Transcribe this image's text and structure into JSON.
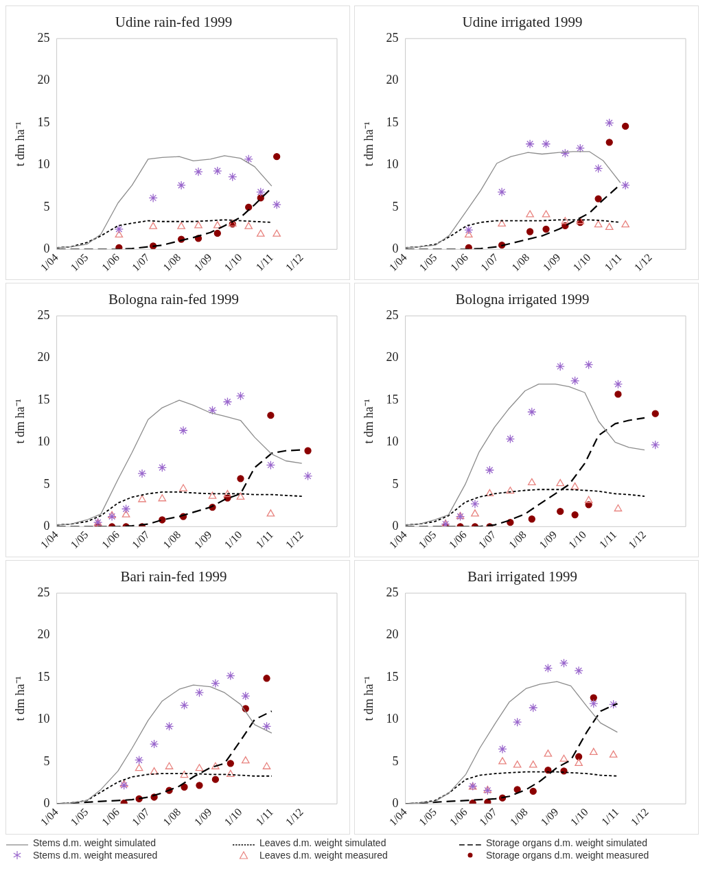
{
  "chart_data": [
    {
      "type": "line",
      "title": "Udine rain-fed 1999",
      "ylabel": "t dm ha⁻¹",
      "legend": "bottom",
      "x": [
        "1999-04-01",
        "1999-04-15",
        "1999-05-01",
        "1999-05-15",
        "1999-06-01",
        "1999-06-15",
        "1999-07-01",
        "1999-07-15",
        "1999-08-01",
        "1999-08-15",
        "1999-09-01",
        "1999-09-15",
        "1999-10-01",
        "1999-10-15",
        "1999-11-01"
      ],
      "xlim": [
        "1999-04-01",
        "2000-01-05"
      ],
      "xticks": [
        {
          "value": "1999-04-01",
          "label": "1/04"
        },
        {
          "value": "1999-05-01",
          "label": "1/05"
        },
        {
          "value": "1999-06-01",
          "label": "1/06"
        },
        {
          "value": "1999-07-01",
          "label": "1/07"
        },
        {
          "value": "1999-08-01",
          "label": "1/08"
        },
        {
          "value": "1999-09-01",
          "label": "1/09"
        },
        {
          "value": "1999-10-01",
          "label": "1/10"
        },
        {
          "value": "1999-11-01",
          "label": "1/11"
        },
        {
          "value": "1999-12-01",
          "label": "1/12"
        }
      ],
      "ylim": [
        0,
        25
      ],
      "yticks": [
        0,
        5,
        10,
        15,
        20,
        25
      ],
      "series": [
        {
          "name": "Stems d.m. weight simulated",
          "color": "#8c8c8c",
          "line_style": "solid",
          "marker": "none",
          "values": [
            0.2,
            0.3,
            0.6,
            1.8,
            5.5,
            7.6,
            10.7,
            10.9,
            11.0,
            10.5,
            10.7,
            11.1,
            10.8,
            9.8,
            7.5
          ]
        },
        {
          "name": "Leaves d.m. weight simulated",
          "color": "#000000",
          "line_style": "dotted",
          "marker": "none",
          "values": [
            0.2,
            0.3,
            0.8,
            1.6,
            2.8,
            3.1,
            3.4,
            3.3,
            3.3,
            3.3,
            3.4,
            3.5,
            3.4,
            3.3,
            3.2
          ]
        },
        {
          "name": "Storage organs d.m. weight simulated",
          "color": "#000000",
          "line_style": "dashed",
          "marker": "none",
          "values": [
            0,
            0,
            0,
            0,
            0,
            0.1,
            0.3,
            0.5,
            1.0,
            1.4,
            2.0,
            2.8,
            3.8,
            5.3,
            7.3
          ]
        },
        {
          "name": "Stems d.m. weight measured",
          "type": "scatter",
          "color": "#9966cc",
          "marker": "cross",
          "x": [
            "1999-06-02",
            "1999-07-06",
            "1999-08-03",
            "1999-08-20",
            "1999-09-08",
            "1999-09-23",
            "1999-10-09",
            "1999-10-21",
            "1999-11-06"
          ],
          "values": [
            2.4,
            6.1,
            7.6,
            9.2,
            9.3,
            8.6,
            10.7,
            6.8,
            5.3
          ]
        },
        {
          "name": "Leaves d.m. weight measured",
          "type": "scatter",
          "color": "#e8837f",
          "marker": "triangle",
          "x": [
            "1999-06-02",
            "1999-07-06",
            "1999-08-03",
            "1999-08-20",
            "1999-09-08",
            "1999-09-23",
            "1999-10-09",
            "1999-10-21",
            "1999-11-06"
          ],
          "values": [
            1.7,
            2.7,
            2.7,
            2.8,
            2.8,
            3.0,
            2.7,
            1.8,
            1.8
          ]
        },
        {
          "name": "Storage organs d.m. weight measured",
          "type": "scatter",
          "color": "#8b0000",
          "marker": "circle",
          "x": [
            "1999-06-02",
            "1999-07-06",
            "1999-08-03",
            "1999-08-20",
            "1999-09-08",
            "1999-09-23",
            "1999-10-09",
            "1999-10-21",
            "1999-11-06"
          ],
          "values": [
            0.2,
            0.4,
            1.2,
            1.3,
            1.9,
            3.0,
            5.0,
            6.1,
            11.0
          ]
        }
      ]
    },
    {
      "type": "line",
      "title": "Udine irrigated 1999",
      "ylabel": "t dm ha⁻¹",
      "x": [
        "1999-04-01",
        "1999-04-15",
        "1999-05-01",
        "1999-05-15",
        "1999-06-01",
        "1999-06-15",
        "1999-07-01",
        "1999-07-15",
        "1999-08-01",
        "1999-08-15",
        "1999-09-01",
        "1999-09-15",
        "1999-10-01",
        "1999-10-15",
        "1999-11-01"
      ],
      "xlim": [
        "1999-04-01",
        "2000-01-05"
      ],
      "xticks": [
        {
          "value": "1999-04-01",
          "label": "1/04"
        },
        {
          "value": "1999-05-01",
          "label": "1/05"
        },
        {
          "value": "1999-06-01",
          "label": "1/06"
        },
        {
          "value": "1999-07-01",
          "label": "1/07"
        },
        {
          "value": "1999-08-01",
          "label": "1/08"
        },
        {
          "value": "1999-09-01",
          "label": "1/09"
        },
        {
          "value": "1999-10-01",
          "label": "1/10"
        },
        {
          "value": "1999-11-01",
          "label": "1/11"
        },
        {
          "value": "1999-12-01",
          "label": "1/12"
        }
      ],
      "ylim": [
        0,
        25
      ],
      "yticks": [
        0,
        5,
        10,
        15,
        20,
        25
      ],
      "series": [
        {
          "color": "#8c8c8c",
          "line_style": "solid",
          "marker": "none",
          "values": [
            0.2,
            0.3,
            0.5,
            1.7,
            4.6,
            7.0,
            10.2,
            11.0,
            11.5,
            11.3,
            11.5,
            11.6,
            11.6,
            10.5,
            7.9
          ]
        },
        {
          "color": "#000000",
          "line_style": "dotted",
          "marker": "none",
          "values": [
            0.2,
            0.3,
            0.6,
            1.5,
            2.8,
            3.2,
            3.4,
            3.4,
            3.4,
            3.4,
            3.5,
            3.5,
            3.5,
            3.4,
            3.2
          ]
        },
        {
          "color": "#000000",
          "line_style": "dashed",
          "marker": "none",
          "values": [
            0,
            0,
            0,
            0,
            0,
            0.1,
            0.3,
            0.7,
            1.2,
            1.6,
            2.4,
            3.3,
            4.3,
            5.9,
            7.7
          ]
        },
        {
          "type": "scatter",
          "color": "#9966cc",
          "marker": "cross",
          "x": [
            "1999-06-03",
            "1999-07-06",
            "1999-08-03",
            "1999-08-19",
            "1999-09-07",
            "1999-09-22",
            "1999-10-10",
            "1999-10-21",
            "1999-11-06"
          ],
          "values": [
            2.3,
            6.8,
            12.5,
            12.5,
            11.4,
            12.0,
            9.6,
            15.0,
            7.6
          ]
        },
        {
          "type": "scatter",
          "color": "#e8837f",
          "marker": "triangle",
          "x": [
            "1999-06-03",
            "1999-07-06",
            "1999-08-03",
            "1999-08-19",
            "1999-09-07",
            "1999-09-22",
            "1999-10-10",
            "1999-10-21",
            "1999-11-06"
          ],
          "values": [
            1.7,
            3.0,
            4.1,
            4.1,
            3.3,
            3.3,
            2.9,
            2.6,
            2.9
          ]
        },
        {
          "type": "scatter",
          "color": "#8b0000",
          "marker": "circle",
          "x": [
            "1999-06-03",
            "1999-07-06",
            "1999-08-03",
            "1999-08-19",
            "1999-09-07",
            "1999-09-22",
            "1999-10-10",
            "1999-10-21",
            "1999-11-06"
          ],
          "values": [
            0.2,
            0.5,
            2.1,
            2.4,
            2.8,
            3.2,
            6.0,
            12.7,
            14.6
          ]
        }
      ]
    },
    {
      "type": "line",
      "title": "Bologna rain-fed 1999",
      "ylabel": "t dm ha⁻¹",
      "x": [
        "1999-04-01",
        "1999-04-15",
        "1999-05-01",
        "1999-05-15",
        "1999-06-01",
        "1999-06-15",
        "1999-07-01",
        "1999-07-15",
        "1999-08-01",
        "1999-08-15",
        "1999-09-01",
        "1999-09-15",
        "1999-10-01",
        "1999-10-15",
        "1999-11-01",
        "1999-11-15",
        "1999-12-01"
      ],
      "xlim": [
        "1999-04-01",
        "2000-01-05"
      ],
      "xticks": [
        {
          "value": "1999-04-01",
          "label": "1/04"
        },
        {
          "value": "1999-05-01",
          "label": "1/05"
        },
        {
          "value": "1999-06-01",
          "label": "1/06"
        },
        {
          "value": "1999-07-01",
          "label": "1/07"
        },
        {
          "value": "1999-08-01",
          "label": "1/08"
        },
        {
          "value": "1999-09-01",
          "label": "1/09"
        },
        {
          "value": "1999-10-01",
          "label": "1/10"
        },
        {
          "value": "1999-11-01",
          "label": "1/11"
        },
        {
          "value": "1999-12-01",
          "label": "1/12"
        }
      ],
      "ylim": [
        0,
        25
      ],
      "yticks": [
        0,
        5,
        10,
        15,
        20,
        25
      ],
      "series": [
        {
          "color": "#8c8c8c",
          "line_style": "solid",
          "marker": "none",
          "values": [
            0.2,
            0.3,
            0.8,
            1.5,
            5.6,
            8.8,
            12.7,
            14.1,
            15.0,
            14.4,
            13.5,
            13.1,
            12.6,
            10.6,
            8.6,
            7.8,
            7.5
          ]
        },
        {
          "color": "#000000",
          "line_style": "dotted",
          "marker": "none",
          "values": [
            0.2,
            0.3,
            0.6,
            1.3,
            2.8,
            3.5,
            3.9,
            4.1,
            4.1,
            4.0,
            3.9,
            3.9,
            3.9,
            3.8,
            3.8,
            3.7,
            3.6
          ]
        },
        {
          "color": "#000000",
          "line_style": "dashed",
          "marker": "none",
          "values": [
            0,
            0,
            0,
            0,
            0,
            0.1,
            0.3,
            0.8,
            1.2,
            1.7,
            2.3,
            3.2,
            3.9,
            7.0,
            8.7,
            9.0,
            9.1
          ]
        },
        {
          "type": "scatter",
          "color": "#9966cc",
          "marker": "cross",
          "x": [
            "1999-05-12",
            "1999-05-26",
            "1999-06-09",
            "1999-06-25",
            "1999-07-15",
            "1999-08-05",
            "1999-09-03",
            "1999-09-18",
            "1999-10-01",
            "1999-10-31",
            "1999-12-07"
          ],
          "values": [
            0.5,
            1.2,
            2.1,
            6.3,
            7.0,
            11.4,
            13.8,
            14.8,
            15.5,
            7.3,
            6.0
          ]
        },
        {
          "type": "scatter",
          "color": "#e8837f",
          "marker": "triangle",
          "x": [
            "1999-05-12",
            "1999-05-26",
            "1999-06-09",
            "1999-06-25",
            "1999-07-15",
            "1999-08-05",
            "1999-09-03",
            "1999-09-18",
            "1999-10-01",
            "1999-10-31"
          ],
          "values": [
            0.4,
            1.3,
            1.4,
            3.2,
            3.3,
            4.5,
            3.6,
            3.8,
            3.5,
            1.5
          ]
        },
        {
          "type": "scatter",
          "color": "#8b0000",
          "marker": "circle",
          "x": [
            "1999-05-12",
            "1999-05-26",
            "1999-06-09",
            "1999-06-25",
            "1999-07-15",
            "1999-08-05",
            "1999-09-03",
            "1999-09-18",
            "1999-10-01",
            "1999-10-31",
            "1999-12-07"
          ],
          "values": [
            0,
            0,
            0,
            0,
            0.8,
            1.2,
            2.3,
            3.4,
            5.7,
            13.2,
            9.0
          ]
        }
      ]
    },
    {
      "type": "line",
      "title": "Bologna irrigated 1999",
      "ylabel": "t dm ha⁻¹",
      "x": [
        "1999-04-01",
        "1999-04-15",
        "1999-05-01",
        "1999-05-15",
        "1999-06-01",
        "1999-06-15",
        "1999-07-01",
        "1999-07-15",
        "1999-08-01",
        "1999-08-15",
        "1999-09-01",
        "1999-09-15",
        "1999-10-01",
        "1999-10-15",
        "1999-11-01",
        "1999-11-15",
        "1999-12-01"
      ],
      "xlim": [
        "1999-04-01",
        "2000-01-12"
      ],
      "xticks": [
        {
          "value": "1999-04-01",
          "label": "1/04"
        },
        {
          "value": "1999-05-01",
          "label": "1/05"
        },
        {
          "value": "1999-06-01",
          "label": "1/06"
        },
        {
          "value": "1999-07-01",
          "label": "1/07"
        },
        {
          "value": "1999-08-01",
          "label": "1/08"
        },
        {
          "value": "1999-09-01",
          "label": "1/09"
        },
        {
          "value": "1999-10-01",
          "label": "1/10"
        },
        {
          "value": "1999-11-01",
          "label": "1/11"
        },
        {
          "value": "1999-12-01",
          "label": "1/12"
        }
      ],
      "ylim": [
        0,
        25
      ],
      "yticks": [
        0,
        5,
        10,
        15,
        20,
        25
      ],
      "series": [
        {
          "color": "#8c8c8c",
          "line_style": "solid",
          "marker": "none",
          "values": [
            0.2,
            0.3,
            0.8,
            1.4,
            5.0,
            8.8,
            11.8,
            13.9,
            16.1,
            16.9,
            16.9,
            16.6,
            15.9,
            12.5,
            10.0,
            9.4,
            9.1
          ]
        },
        {
          "color": "#000000",
          "line_style": "dotted",
          "marker": "none",
          "values": [
            0.2,
            0.3,
            0.6,
            1.3,
            2.9,
            3.5,
            3.9,
            4.1,
            4.3,
            4.4,
            4.4,
            4.4,
            4.3,
            4.2,
            3.9,
            3.8,
            3.6
          ]
        },
        {
          "color": "#000000",
          "line_style": "dashed",
          "marker": "none",
          "values": [
            0,
            0,
            0,
            0,
            0,
            0,
            0.2,
            0.7,
            1.5,
            2.6,
            3.9,
            5.0,
            7.5,
            10.8,
            12.2,
            12.6,
            12.9
          ]
        },
        {
          "type": "scatter",
          "color": "#9966cc",
          "marker": "cross",
          "x": [
            "1999-05-12",
            "1999-05-27",
            "1999-06-11",
            "1999-06-26",
            "1999-07-17",
            "1999-08-08",
            "1999-09-06",
            "1999-09-21",
            "1999-10-05",
            "1999-11-04",
            "1999-12-12"
          ],
          "values": [
            0.3,
            1.2,
            2.7,
            6.7,
            10.4,
            13.6,
            19.0,
            17.3,
            19.2,
            16.9,
            9.7
          ]
        },
        {
          "type": "scatter",
          "color": "#e8837f",
          "marker": "triangle",
          "x": [
            "1999-05-12",
            "1999-05-27",
            "1999-06-11",
            "1999-06-26",
            "1999-07-17",
            "1999-08-08",
            "1999-09-06",
            "1999-09-21",
            "1999-10-05",
            "1999-11-04"
          ],
          "values": [
            0.3,
            1.2,
            1.5,
            3.9,
            4.2,
            5.2,
            5.1,
            4.7,
            3.1,
            2.1
          ]
        },
        {
          "type": "scatter",
          "color": "#8b0000",
          "marker": "circle",
          "x": [
            "1999-05-12",
            "1999-05-27",
            "1999-06-11",
            "1999-06-26",
            "1999-07-17",
            "1999-08-08",
            "1999-09-06",
            "1999-09-21",
            "1999-10-05",
            "1999-11-04",
            "1999-12-12"
          ],
          "values": [
            0,
            0,
            0,
            0,
            0.5,
            0.9,
            1.8,
            1.4,
            2.6,
            15.7,
            13.4
          ]
        }
      ]
    },
    {
      "type": "line",
      "title": "Bari rain-fed 1999",
      "ylabel": "t dm ha⁻¹",
      "x": [
        "1999-04-01",
        "1999-04-15",
        "1999-05-01",
        "1999-05-15",
        "1999-06-01",
        "1999-06-15",
        "1999-07-01",
        "1999-07-15",
        "1999-08-01",
        "1999-08-15",
        "1999-09-01",
        "1999-09-15",
        "1999-10-01",
        "1999-10-15",
        "1999-11-01"
      ],
      "xlim": [
        "1999-04-01",
        "2000-01-05"
      ],
      "xticks": [
        {
          "value": "1999-04-01",
          "label": "1/04"
        },
        {
          "value": "1999-05-01",
          "label": "1/05"
        },
        {
          "value": "1999-06-01",
          "label": "1/06"
        },
        {
          "value": "1999-07-01",
          "label": "1/07"
        },
        {
          "value": "1999-08-01",
          "label": "1/08"
        },
        {
          "value": "1999-09-01",
          "label": "1/09"
        },
        {
          "value": "1999-10-01",
          "label": "1/10"
        },
        {
          "value": "1999-11-01",
          "label": "1/11"
        },
        {
          "value": "1999-12-01",
          "label": "1/12"
        }
      ],
      "ylim": [
        0,
        25
      ],
      "yticks": [
        0,
        5,
        10,
        15,
        20,
        25
      ],
      "series": [
        {
          "color": "#8c8c8c",
          "line_style": "solid",
          "marker": "none",
          "values": [
            0,
            0.1,
            0.4,
            1.7,
            3.9,
            6.6,
            9.9,
            12.2,
            13.6,
            14.1,
            13.9,
            13.2,
            11.8,
            9.4,
            8.4
          ]
        },
        {
          "color": "#000000",
          "line_style": "dotted",
          "marker": "none",
          "values": [
            0,
            0.1,
            0.4,
            1.4,
            2.6,
            3.2,
            3.5,
            3.6,
            3.6,
            3.6,
            3.5,
            3.5,
            3.4,
            3.3,
            3.3
          ]
        },
        {
          "color": "#000000",
          "line_style": "dashed",
          "marker": "none",
          "values": [
            0,
            0.1,
            0.2,
            0.3,
            0.4,
            0.5,
            0.8,
            1.3,
            2.1,
            3.2,
            4.3,
            4.8,
            7.5,
            10.0,
            11.0
          ]
        },
        {
          "type": "scatter",
          "color": "#9966cc",
          "marker": "cross",
          "x": [
            "1999-06-07",
            "1999-06-22",
            "1999-07-07",
            "1999-07-22",
            "1999-08-06",
            "1999-08-21",
            "1999-09-06",
            "1999-09-21",
            "1999-10-06",
            "1999-10-27"
          ],
          "values": [
            2.2,
            5.2,
            7.1,
            9.2,
            11.7,
            13.2,
            14.3,
            15.2,
            12.8,
            9.2
          ]
        },
        {
          "type": "scatter",
          "color": "#e8837f",
          "marker": "triangle",
          "x": [
            "1999-06-07",
            "1999-06-22",
            "1999-07-07",
            "1999-07-22",
            "1999-08-06",
            "1999-08-21",
            "1999-09-06",
            "1999-09-21",
            "1999-10-06",
            "1999-10-27"
          ],
          "values": [
            2.3,
            4.2,
            3.8,
            4.4,
            3.4,
            4.2,
            4.4,
            3.5,
            5.1,
            4.4
          ]
        },
        {
          "type": "scatter",
          "color": "#8b0000",
          "marker": "circle",
          "x": [
            "1999-06-07",
            "1999-06-22",
            "1999-07-07",
            "1999-07-22",
            "1999-08-06",
            "1999-08-21",
            "1999-09-06",
            "1999-09-21",
            "1999-10-06",
            "1999-10-27"
          ],
          "values": [
            0.1,
            0.6,
            0.8,
            1.6,
            2.0,
            2.2,
            2.9,
            4.8,
            11.3,
            14.9
          ]
        }
      ]
    },
    {
      "type": "line",
      "title": "Bari irrigated 1999",
      "ylabel": "t dm ha⁻¹",
      "x": [
        "1999-04-01",
        "1999-04-15",
        "1999-05-01",
        "1999-05-15",
        "1999-06-01",
        "1999-06-15",
        "1999-07-01",
        "1999-07-15",
        "1999-08-01",
        "1999-08-15",
        "1999-09-01",
        "1999-09-15",
        "1999-10-01",
        "1999-10-15",
        "1999-11-01"
      ],
      "xlim": [
        "1999-04-01",
        "2000-01-09"
      ],
      "xticks": [
        {
          "value": "1999-04-01",
          "label": "1/04"
        },
        {
          "value": "1999-05-01",
          "label": "1/05"
        },
        {
          "value": "1999-06-01",
          "label": "1/06"
        },
        {
          "value": "1999-07-01",
          "label": "1/07"
        },
        {
          "value": "1999-08-01",
          "label": "1/08"
        },
        {
          "value": "1999-09-01",
          "label": "1/09"
        },
        {
          "value": "1999-10-01",
          "label": "1/10"
        },
        {
          "value": "1999-11-01",
          "label": "1/11"
        },
        {
          "value": "1999-12-01",
          "label": "1/12"
        }
      ],
      "ylim": [
        0,
        25
      ],
      "yticks": [
        0,
        5,
        10,
        15,
        20,
        25
      ],
      "series": [
        {
          "color": "#8c8c8c",
          "line_style": "solid",
          "marker": "none",
          "values": [
            0,
            0.1,
            0.3,
            1.3,
            3.5,
            6.6,
            9.6,
            12.1,
            13.7,
            14.2,
            14.5,
            14.0,
            11.6,
            9.6,
            8.5
          ]
        },
        {
          "color": "#000000",
          "line_style": "dotted",
          "marker": "none",
          "values": [
            0,
            0.1,
            0.4,
            1.3,
            2.9,
            3.4,
            3.6,
            3.7,
            3.8,
            3.8,
            3.8,
            3.7,
            3.6,
            3.4,
            3.3
          ]
        },
        {
          "color": "#000000",
          "line_style": "dashed",
          "marker": "none",
          "values": [
            0,
            0.1,
            0.2,
            0.3,
            0.4,
            0.5,
            0.6,
            0.9,
            1.7,
            2.7,
            4.3,
            5.2,
            8.5,
            11.0,
            11.9
          ]
        },
        {
          "type": "scatter",
          "color": "#9966cc",
          "marker": "cross",
          "x": [
            "1999-06-08",
            "1999-06-23",
            "1999-07-08",
            "1999-07-23",
            "1999-08-08",
            "1999-08-23",
            "1999-09-08",
            "1999-09-23",
            "1999-10-08",
            "1999-10-28"
          ],
          "values": [
            2.1,
            1.6,
            6.5,
            9.7,
            11.4,
            16.1,
            16.7,
            15.8,
            11.9,
            11.8
          ]
        },
        {
          "type": "scatter",
          "color": "#e8837f",
          "marker": "triangle",
          "x": [
            "1999-06-08",
            "1999-06-23",
            "1999-07-08",
            "1999-07-23",
            "1999-08-08",
            "1999-08-23",
            "1999-09-08",
            "1999-09-23",
            "1999-10-08",
            "1999-10-28"
          ],
          "values": [
            2.0,
            1.6,
            5.0,
            4.6,
            4.6,
            5.9,
            5.3,
            4.8,
            6.1,
            5.8
          ]
        },
        {
          "type": "scatter",
          "color": "#8b0000",
          "marker": "circle",
          "x": [
            "1999-06-08",
            "1999-06-23",
            "1999-07-08",
            "1999-07-23",
            "1999-08-08",
            "1999-08-23",
            "1999-09-08",
            "1999-09-23",
            "1999-10-08"
          ],
          "values": [
            0.1,
            0.2,
            0.7,
            1.7,
            1.5,
            4.0,
            3.9,
            5.6,
            12.6
          ]
        }
      ]
    }
  ]
}
